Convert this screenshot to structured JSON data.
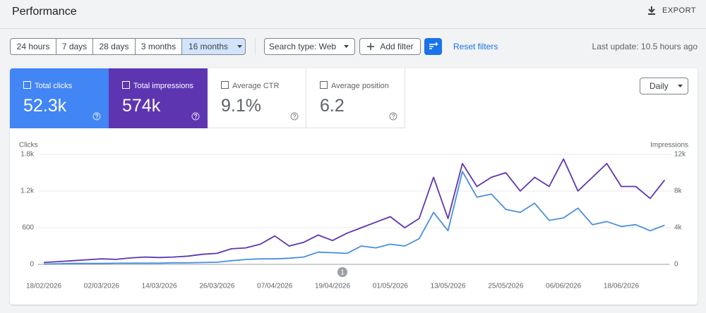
{
  "header": {
    "title": "Performance",
    "export": "EXPORT"
  },
  "toolbar": {
    "ranges": [
      "24 hours",
      "7 days",
      "28 days",
      "3 months",
      "16 months"
    ],
    "search_type": "Search type: Web",
    "add_filter": "Add filter",
    "reset": "Reset filters",
    "last_update": "Last update: 10.5 hours ago"
  },
  "metrics": [
    {
      "label": "Total clicks",
      "value": "52.3k"
    },
    {
      "label": "Total impressions",
      "value": "574k"
    },
    {
      "label": "Average CTR",
      "value": "9.1%"
    },
    {
      "label": "Average position",
      "value": "6.2"
    }
  ],
  "granularity": "Daily",
  "chart_data": {
    "type": "line",
    "ylabel": "Clicks",
    "y2label": "Impressions",
    "annotation": "1",
    "categories": [
      "18/02/2026",
      null,
      null,
      null,
      "02/03/2026",
      null,
      null,
      null,
      "14/03/2026",
      null,
      null,
      null,
      "26/03/2026",
      null,
      null,
      null,
      "07/04/2026",
      null,
      null,
      null,
      "19/04/2026",
      null,
      null,
      null,
      "01/05/2026",
      null,
      null,
      null,
      "13/05/2026",
      null,
      null,
      null,
      "25/05/2026",
      null,
      null,
      null,
      "06/06/2026",
      null,
      null,
      null,
      "18/06/2026",
      null,
      null,
      null
    ],
    "series": [
      {
        "name": "Clicks",
        "color": "#4a8fdc",
        "values": [
          5,
          10,
          15,
          15,
          15,
          18,
          20,
          20,
          20,
          25,
          25,
          30,
          35,
          60,
          80,
          90,
          90,
          100,
          120,
          200,
          190,
          180,
          300,
          270,
          330,
          300,
          420,
          850,
          550,
          1520,
          1100,
          1150,
          900,
          850,
          1000,
          720,
          760,
          920,
          650,
          700,
          620,
          650,
          550,
          640
        ]
      },
      {
        "name": "Impressions",
        "color": "#5e35b1",
        "axis": "y2",
        "values": [
          200,
          300,
          400,
          500,
          600,
          550,
          700,
          800,
          750,
          800,
          900,
          1100,
          1200,
          1700,
          1800,
          2200,
          3100,
          2000,
          2400,
          3200,
          2600,
          3400,
          4000,
          4600,
          5200,
          4000,
          5000,
          9500,
          5000,
          11000,
          8500,
          9500,
          10000,
          8000,
          9500,
          8500,
          11500,
          8000,
          9500,
          11000,
          8500,
          8500,
          7200,
          9200
        ]
      }
    ],
    "ylim": [
      0,
      1800
    ],
    "yticks": [
      0,
      600,
      {
        "value": 1200,
        "label": "1.2k"
      },
      {
        "value": 1800,
        "label": "1.8k"
      }
    ],
    "y2lim": [
      0,
      12000
    ],
    "y2ticks": [
      0,
      {
        "value": 4000,
        "label": "4k"
      },
      {
        "value": 8000,
        "label": "8k"
      },
      {
        "value": 12000,
        "label": "12k"
      }
    ],
    "grid": true
  }
}
